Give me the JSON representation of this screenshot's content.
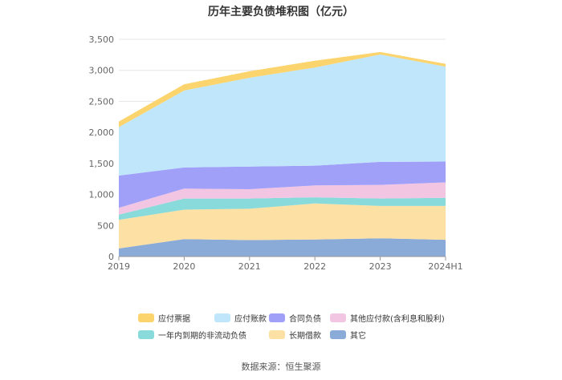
{
  "chart_data": {
    "type": "area",
    "stacked": true,
    "title": "历年主要负债堆积图（亿元）",
    "source": "数据来源：恒生聚源",
    "x": [
      "2019",
      "2020",
      "2021",
      "2022",
      "2023",
      "2024H1"
    ],
    "y_ticks": [
      "0",
      "500",
      "1,000",
      "1,500",
      "2,000",
      "2,500",
      "3,000",
      "3,500"
    ],
    "ylim": [
      0,
      3500
    ],
    "grid": true,
    "legend_position": "bottom",
    "series": [
      {
        "name": "其它",
        "color": "#8aaad8",
        "values": [
          130,
          280,
          265,
          275,
          295,
          270
        ]
      },
      {
        "name": "长期借款",
        "color": "#fde0a4",
        "values": [
          460,
          475,
          505,
          580,
          520,
          545
        ]
      },
      {
        "name": "一年内到期的非流动负债",
        "color": "#89dada",
        "values": [
          85,
          180,
          165,
          100,
          120,
          130
        ]
      },
      {
        "name": "其他应付款(含利息和股利)",
        "color": "#f2c6e3",
        "values": [
          110,
          160,
          150,
          190,
          220,
          250
        ]
      },
      {
        "name": "合同负债",
        "color": "#a0a0f8",
        "values": [
          520,
          340,
          365,
          320,
          370,
          335
        ]
      },
      {
        "name": "应付账款",
        "color": "#bfe6fb",
        "values": [
          780,
          1240,
          1430,
          1580,
          1730,
          1530
        ]
      },
      {
        "name": "应付票据",
        "color": "#fbd46e",
        "values": [
          90,
          100,
          105,
          110,
          40,
          45
        ]
      }
    ]
  },
  "legend_order": [
    "应付票据",
    "应付账款",
    "合同负债",
    "其他应付款(含利息和股利)",
    "一年内到期的非流动负债",
    "长期借款",
    "其它"
  ]
}
